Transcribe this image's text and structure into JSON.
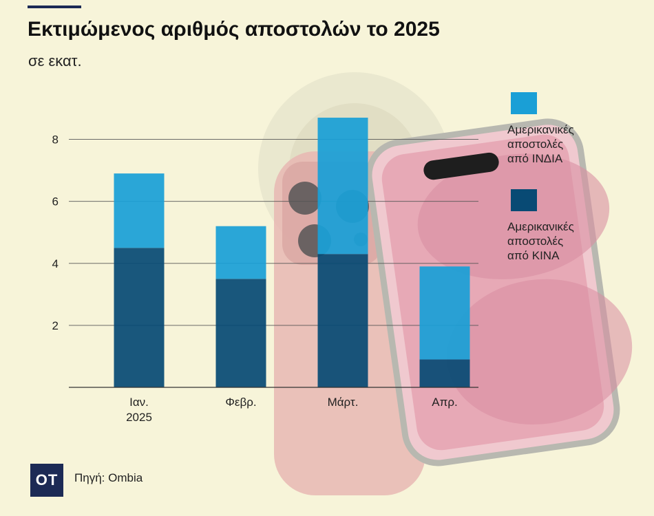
{
  "header": {
    "title": "Εκτιμώμενος αριθμός αποστολών το 2025",
    "subtitle": "σε εκατ."
  },
  "footer": {
    "logo": "OT",
    "source": "Πηγή: Ombia"
  },
  "colors": {
    "background": "#f7f4d9",
    "india": "#1a9fd6",
    "china": "#084a74",
    "brand": "#1c2a55"
  },
  "chart_data": {
    "type": "bar",
    "stacked": true,
    "categories": [
      [
        "Ιαν.",
        "2025"
      ],
      [
        "Φεβρ."
      ],
      [
        "Μάρτ."
      ],
      [
        "Απρ."
      ]
    ],
    "series": [
      {
        "name": "Αμερικανικές αποστολές από ΚΙΝΑ",
        "name_lines": [
          "Αμερικανικές",
          "αποστολές",
          "από ΚΙΝΑ"
        ],
        "color": "#084a74",
        "values": [
          4.5,
          3.5,
          4.3,
          0.9
        ]
      },
      {
        "name": "Αμερικανικές αποστολές από ΙΝΔΙΑ",
        "name_lines": [
          "Αμερικανικές",
          "αποστολές",
          "από ΙΝΔΙΑ"
        ],
        "color": "#1a9fd6",
        "values": [
          2.4,
          1.7,
          4.4,
          3.0
        ]
      }
    ],
    "yticks": [
      2,
      4,
      6,
      8
    ],
    "ylim": [
      0,
      9.5
    ],
    "grid": true,
    "legend": "right"
  }
}
